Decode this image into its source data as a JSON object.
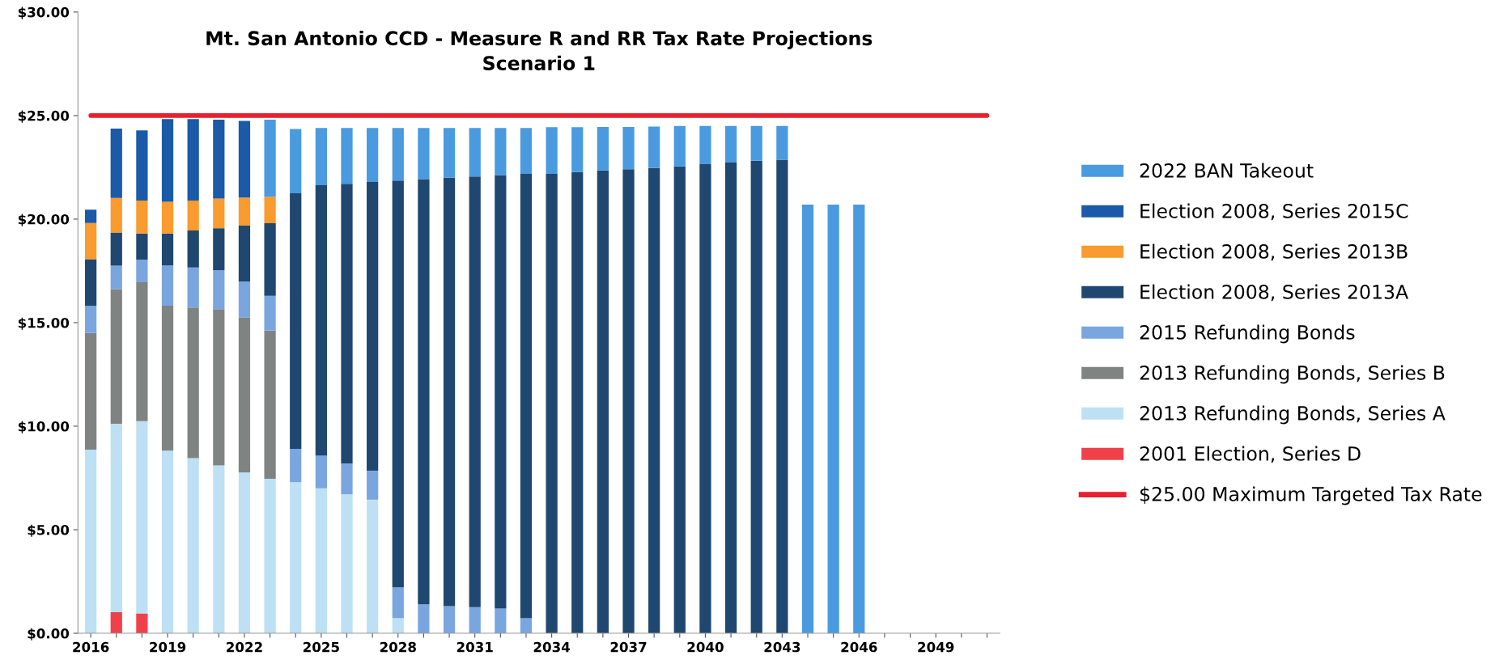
{
  "chart_data": {
    "type": "bar",
    "stacked": true,
    "title": "Mt. San Antonio CCD - Measure R and RR Tax Rate Projections",
    "subtitle": "Scenario 1",
    "categories": [
      "2016",
      null,
      null,
      "2019",
      null,
      null,
      "2022",
      null,
      null,
      "2025",
      null,
      null,
      "2028",
      null,
      null,
      "2031",
      null,
      null,
      "2034",
      null,
      null,
      "2037",
      null,
      null,
      "2040",
      null,
      null,
      "2043",
      null,
      null,
      "2046",
      null,
      null,
      "2049",
      null,
      null
    ],
    "series": [
      {
        "name": "2001 Election, Series D",
        "color": "#f0404a",
        "values": [
          null,
          1.02,
          0.96,
          null,
          null,
          null,
          null,
          null,
          null,
          null,
          null,
          null,
          null,
          null,
          null,
          null,
          null,
          null,
          null,
          null,
          null,
          null,
          null,
          null,
          null,
          null,
          null,
          null,
          null,
          null,
          null,
          null,
          null,
          null,
          null,
          null
        ]
      },
      {
        "name": "2013 Refunding Bonds, Series A",
        "color": "#bde0f5",
        "values": [
          8.87,
          9.1,
          9.28,
          8.82,
          8.46,
          8.11,
          7.76,
          7.46,
          7.3,
          7.0,
          6.71,
          6.45,
          0.73,
          null,
          null,
          null,
          null,
          null,
          null,
          null,
          null,
          null,
          null,
          null,
          null,
          null,
          null,
          null,
          null,
          null,
          null,
          null,
          null,
          null,
          null,
          null
        ]
      },
      {
        "name": "2013 Refunding Bonds, Series B",
        "color": "#7f8482",
        "values": [
          5.63,
          6.5,
          6.71,
          7.0,
          7.27,
          7.54,
          7.48,
          7.16,
          null,
          null,
          null,
          null,
          null,
          null,
          null,
          null,
          null,
          null,
          null,
          null,
          null,
          null,
          null,
          null,
          null,
          null,
          null,
          null,
          null,
          null,
          null,
          null,
          null,
          null,
          null,
          null
        ]
      },
      {
        "name": "2015 Refunding Bonds",
        "color": "#7aa6e0",
        "values": [
          1.31,
          1.13,
          1.09,
          1.94,
          1.93,
          1.88,
          1.74,
          1.68,
          1.61,
          1.57,
          1.48,
          1.4,
          1.49,
          1.4,
          1.31,
          1.26,
          1.19,
          0.72,
          null,
          null,
          null,
          null,
          null,
          null,
          null,
          null,
          null,
          null,
          null,
          null,
          null,
          null,
          null,
          null,
          null,
          null
        ]
      },
      {
        "name": "Election 2008, Series 2013A",
        "color": "#1f4770",
        "values": [
          2.25,
          1.6,
          1.26,
          1.54,
          1.79,
          2.03,
          2.71,
          3.5,
          12.34,
          13.07,
          13.52,
          13.94,
          19.64,
          20.53,
          20.69,
          20.8,
          20.94,
          21.46,
          22.18,
          22.27,
          22.35,
          22.41,
          22.47,
          22.55,
          22.65,
          22.73,
          22.82,
          22.87,
          null,
          null,
          null,
          null,
          null,
          null,
          null,
          null
        ]
      },
      {
        "name": "Election 2008, Series 2013B",
        "color": "#f99b2e",
        "values": [
          1.75,
          1.67,
          1.6,
          1.54,
          1.45,
          1.43,
          1.35,
          1.28,
          null,
          null,
          null,
          null,
          null,
          null,
          null,
          null,
          null,
          null,
          null,
          null,
          null,
          null,
          null,
          null,
          null,
          null,
          null,
          null,
          null,
          null,
          null,
          null,
          null,
          null,
          null,
          null
        ]
      },
      {
        "name": "Election 2008, Series 2015C",
        "color": "#1a5aa8",
        "values": [
          0.65,
          3.35,
          3.38,
          3.99,
          3.93,
          3.81,
          3.7,
          null,
          null,
          null,
          null,
          null,
          null,
          null,
          null,
          null,
          null,
          null,
          null,
          null,
          null,
          null,
          null,
          null,
          null,
          null,
          null,
          null,
          null,
          null,
          null,
          null,
          null,
          null,
          null,
          null
        ]
      },
      {
        "name": "2022 BAN Takeout",
        "color": "#4a9ae0",
        "values": [
          null,
          null,
          null,
          null,
          null,
          null,
          null,
          3.72,
          3.1,
          2.76,
          2.69,
          2.61,
          2.54,
          2.47,
          2.4,
          2.34,
          2.27,
          2.22,
          2.26,
          2.17,
          2.1,
          2.04,
          2.0,
          1.95,
          1.85,
          1.77,
          1.68,
          1.63,
          20.7,
          20.7,
          20.7,
          null,
          null,
          null,
          null,
          null
        ]
      }
    ],
    "ref_lines": [
      {
        "axis": "y",
        "value": 25,
        "label": "$25.00 Maximum Targeted Tax Rate",
        "color": "#e8202e"
      }
    ],
    "ylim": [
      0,
      30
    ],
    "yticks": [
      {
        "value": 0,
        "label": "$0.00"
      },
      {
        "value": 5,
        "label": "$5.00"
      },
      {
        "value": 10,
        "label": "$10.00"
      },
      {
        "value": 15,
        "label": "$15.00"
      },
      {
        "value": 20,
        "label": "$20.00"
      },
      {
        "value": 25,
        "label": "$25.00"
      },
      {
        "value": 30,
        "label": "$30.00"
      }
    ],
    "grid": false,
    "legend": "right"
  }
}
